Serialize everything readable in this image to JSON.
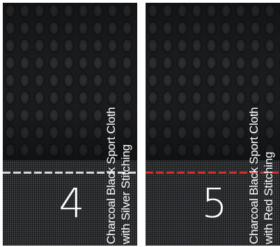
{
  "swatches": [
    {
      "number": "4",
      "label_line1": "Charcoal Black Sport Cloth",
      "label_line2": "with Silver Stitching",
      "stitch_color": "#d6d8da"
    },
    {
      "number": "5",
      "label_line1": "Charcoal Black Sport Cloth",
      "label_line2": "with Red Stitching",
      "stitch_color": "#d4302c"
    }
  ],
  "colors": {
    "cloth": "#1c1d1f",
    "mesh": "#3b3d40",
    "text": "#ffffff",
    "background": "#ffffff"
  }
}
